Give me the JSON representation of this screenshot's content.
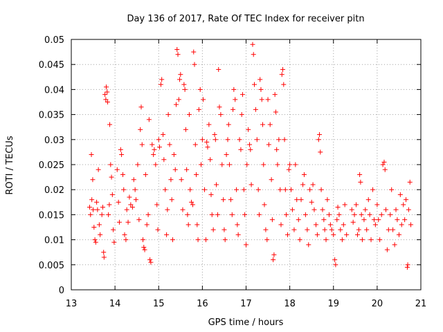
{
  "chart_data": {
    "type": "scatter",
    "title": "Day 136 of 2017, Rate Of TEC Index for receiver pitn",
    "xlabel": "GPS time / hours",
    "ylabel": "ROTI / TECUs",
    "xlim": [
      13,
      21
    ],
    "ylim": [
      0,
      0.05
    ],
    "xticks": [
      13,
      14,
      15,
      16,
      17,
      18,
      19,
      20,
      21
    ],
    "yticks": [
      0,
      0.005,
      0.01,
      0.015,
      0.02,
      0.025,
      0.03,
      0.035,
      0.04,
      0.045,
      0.05
    ],
    "ytick_labels": [
      "0",
      "0.005",
      "0.01",
      "0.015",
      "0.02",
      "0.025",
      "0.03",
      "0.035",
      "0.04",
      "0.045",
      "0.05"
    ],
    "grid": true,
    "marker": "+",
    "color": "#ff0000",
    "series": [
      {
        "name": "ROTI",
        "points": [
          [
            13.42,
            0.0165
          ],
          [
            13.44,
            0.015
          ],
          [
            13.46,
            0.027
          ],
          [
            13.47,
            0.018
          ],
          [
            13.49,
            0.022
          ],
          [
            13.5,
            0.016
          ],
          [
            13.52,
            0.0125
          ],
          [
            13.54,
            0.01
          ],
          [
            13.56,
            0.0095
          ],
          [
            13.58,
            0.0175
          ],
          [
            13.6,
            0.016
          ],
          [
            13.62,
            0.024
          ],
          [
            13.64,
            0.013
          ],
          [
            13.66,
            0.011
          ],
          [
            13.7,
            0.015
          ],
          [
            13.72,
            0.0165
          ],
          [
            13.74,
            0.0075
          ],
          [
            13.75,
            0.0065
          ],
          [
            13.77,
            0.039
          ],
          [
            13.79,
            0.038
          ],
          [
            13.8,
            0.0405
          ],
          [
            13.82,
            0.0395
          ],
          [
            13.83,
            0.0375
          ],
          [
            13.85,
            0.015
          ],
          [
            13.87,
            0.017
          ],
          [
            13.88,
            0.033
          ],
          [
            13.9,
            0.025
          ],
          [
            13.92,
            0.0225
          ],
          [
            13.94,
            0.019
          ],
          [
            13.96,
            0.012
          ],
          [
            13.98,
            0.0095
          ],
          [
            14.05,
            0.024
          ],
          [
            14.08,
            0.0175
          ],
          [
            14.1,
            0.0135
          ],
          [
            14.13,
            0.028
          ],
          [
            14.15,
            0.027
          ],
          [
            14.18,
            0.023
          ],
          [
            14.2,
            0.02
          ],
          [
            14.22,
            0.011
          ],
          [
            14.25,
            0.01
          ],
          [
            14.27,
            0.016
          ],
          [
            14.3,
            0.0135
          ],
          [
            14.33,
            0.0185
          ],
          [
            14.36,
            0.017
          ],
          [
            14.4,
            0.0165
          ],
          [
            14.43,
            0.022
          ],
          [
            14.46,
            0.02
          ],
          [
            14.48,
            0.018
          ],
          [
            14.52,
            0.025
          ],
          [
            14.55,
            0.014
          ],
          [
            14.58,
            0.032
          ],
          [
            14.6,
            0.0365
          ],
          [
            14.62,
            0.029
          ],
          [
            14.64,
            0.01
          ],
          [
            14.66,
            0.0085
          ],
          [
            14.68,
            0.008
          ],
          [
            14.7,
            0.023
          ],
          [
            14.73,
            0.013
          ],
          [
            14.76,
            0.015
          ],
          [
            14.78,
            0.034
          ],
          [
            14.8,
            0.006
          ],
          [
            14.82,
            0.0055
          ],
          [
            14.85,
            0.029
          ],
          [
            14.88,
            0.027
          ],
          [
            14.9,
            0.028
          ],
          [
            14.93,
            0.025
          ],
          [
            14.96,
            0.017
          ],
          [
            14.98,
            0.012
          ],
          [
            15.0,
            0.03
          ],
          [
            15.02,
            0.0285
          ],
          [
            15.05,
            0.041
          ],
          [
            15.07,
            0.042
          ],
          [
            15.1,
            0.031
          ],
          [
            15.12,
            0.026
          ],
          [
            15.15,
            0.02
          ],
          [
            15.18,
            0.011
          ],
          [
            15.2,
            0.016
          ],
          [
            15.22,
            0.035
          ],
          [
            15.25,
            0.029
          ],
          [
            15.28,
            0.022
          ],
          [
            15.3,
            0.018
          ],
          [
            15.32,
            0.01
          ],
          [
            15.35,
            0.027
          ],
          [
            15.38,
            0.024
          ],
          [
            15.4,
            0.037
          ],
          [
            15.42,
            0.048
          ],
          [
            15.44,
            0.047
          ],
          [
            15.46,
            0.038
          ],
          [
            15.48,
            0.042
          ],
          [
            15.5,
            0.043
          ],
          [
            15.52,
            0.022
          ],
          [
            15.55,
            0.016
          ],
          [
            15.58,
            0.041
          ],
          [
            15.6,
            0.04
          ],
          [
            15.62,
            0.032
          ],
          [
            15.64,
            0.024
          ],
          [
            15.66,
            0.015
          ],
          [
            15.68,
            0.013
          ],
          [
            15.7,
            0.035
          ],
          [
            15.72,
            0.02
          ],
          [
            15.75,
            0.0175
          ],
          [
            15.78,
            0.017
          ],
          [
            15.8,
            0.0475
          ],
          [
            15.82,
            0.045
          ],
          [
            15.84,
            0.029
          ],
          [
            15.86,
            0.023
          ],
          [
            15.88,
            0.013
          ],
          [
            15.9,
            0.01
          ],
          [
            15.92,
            0.036
          ],
          [
            15.95,
            0.04
          ],
          [
            15.97,
            0.025
          ],
          [
            16.0,
            0.03
          ],
          [
            16.02,
            0.038
          ],
          [
            16.05,
            0.02
          ],
          [
            16.08,
            0.01
          ],
          [
            16.1,
            0.0295
          ],
          [
            16.12,
            0.0285
          ],
          [
            16.15,
            0.033
          ],
          [
            16.18,
            0.026
          ],
          [
            16.2,
            0.019
          ],
          [
            16.22,
            0.015
          ],
          [
            16.25,
            0.012
          ],
          [
            16.28,
            0.031
          ],
          [
            16.3,
            0.03
          ],
          [
            16.32,
            0.021
          ],
          [
            16.35,
            0.015
          ],
          [
            16.37,
            0.044
          ],
          [
            16.39,
            0.0365
          ],
          [
            16.42,
            0.035
          ],
          [
            16.45,
            0.025
          ],
          [
            16.48,
            0.018
          ],
          [
            16.5,
            0.012
          ],
          [
            16.52,
            0.01
          ],
          [
            16.55,
            0.027
          ],
          [
            16.58,
            0.03
          ],
          [
            16.6,
            0.033
          ],
          [
            16.62,
            0.025
          ],
          [
            16.65,
            0.018
          ],
          [
            16.68,
            0.015
          ],
          [
            16.7,
            0.036
          ],
          [
            16.72,
            0.04
          ],
          [
            16.75,
            0.038
          ],
          [
            16.78,
            0.02
          ],
          [
            16.8,
            0.013
          ],
          [
            16.82,
            0.011
          ],
          [
            16.85,
            0.03
          ],
          [
            16.88,
            0.028
          ],
          [
            16.9,
            0.035
          ],
          [
            16.92,
            0.039
          ],
          [
            16.95,
            0.02
          ],
          [
            16.97,
            0.015
          ],
          [
            17.0,
            0.009
          ],
          [
            17.02,
            0.025
          ],
          [
            17.05,
            0.032
          ],
          [
            17.08,
            0.029
          ],
          [
            17.1,
            0.028
          ],
          [
            17.12,
            0.021
          ],
          [
            17.15,
            0.049
          ],
          [
            17.17,
            0.047
          ],
          [
            17.19,
            0.041
          ],
          [
            17.22,
            0.036
          ],
          [
            17.25,
            0.03
          ],
          [
            17.28,
            0.02
          ],
          [
            17.3,
            0.015
          ],
          [
            17.32,
            0.042
          ],
          [
            17.34,
            0.04
          ],
          [
            17.36,
            0.038
          ],
          [
            17.38,
            0.033
          ],
          [
            17.4,
            0.025
          ],
          [
            17.42,
            0.017
          ],
          [
            17.45,
            0.012
          ],
          [
            17.48,
            0.01
          ],
          [
            17.5,
            0.038
          ],
          [
            17.52,
            0.029
          ],
          [
            17.55,
            0.033
          ],
          [
            17.58,
            0.022
          ],
          [
            17.6,
            0.014
          ],
          [
            17.62,
            0.006
          ],
          [
            17.64,
            0.007
          ],
          [
            17.66,
            0.039
          ],
          [
            17.68,
            0.0355
          ],
          [
            17.7,
            0.028
          ],
          [
            17.72,
            0.025
          ],
          [
            17.75,
            0.03
          ],
          [
            17.78,
            0.02
          ],
          [
            17.8,
            0.013
          ],
          [
            17.82,
            0.043
          ],
          [
            17.84,
            0.044
          ],
          [
            17.86,
            0.041
          ],
          [
            17.88,
            0.03
          ],
          [
            17.9,
            0.02
          ],
          [
            17.92,
            0.015
          ],
          [
            17.95,
            0.011
          ],
          [
            17.98,
            0.024
          ],
          [
            18.0,
            0.025
          ],
          [
            18.03,
            0.02
          ],
          [
            18.06,
            0.016
          ],
          [
            18.1,
            0.012
          ],
          [
            18.13,
            0.025
          ],
          [
            18.16,
            0.018
          ],
          [
            18.2,
            0.014
          ],
          [
            18.23,
            0.01
          ],
          [
            18.26,
            0.018
          ],
          [
            18.3,
            0.021
          ],
          [
            18.33,
            0.023
          ],
          [
            18.36,
            0.015
          ],
          [
            18.4,
            0.012
          ],
          [
            18.43,
            0.009
          ],
          [
            18.46,
            0.02
          ],
          [
            18.5,
            0.0175
          ],
          [
            18.53,
            0.021
          ],
          [
            18.56,
            0.016
          ],
          [
            18.6,
            0.013
          ],
          [
            18.63,
            0.011
          ],
          [
            18.66,
            0.03
          ],
          [
            18.68,
            0.031
          ],
          [
            18.7,
            0.0275
          ],
          [
            18.72,
            0.02
          ],
          [
            18.75,
            0.016
          ],
          [
            18.78,
            0.014
          ],
          [
            18.8,
            0.012
          ],
          [
            18.83,
            0.01
          ],
          [
            18.86,
            0.018
          ],
          [
            18.9,
            0.015
          ],
          [
            18.93,
            0.013
          ],
          [
            18.96,
            0.012
          ],
          [
            19.0,
            0.011
          ],
          [
            19.03,
            0.006
          ],
          [
            19.05,
            0.005
          ],
          [
            19.08,
            0.014
          ],
          [
            19.1,
            0.0165
          ],
          [
            19.13,
            0.015
          ],
          [
            19.16,
            0.012
          ],
          [
            19.2,
            0.01
          ],
          [
            19.23,
            0.013
          ],
          [
            19.26,
            0.017
          ],
          [
            19.3,
            0.011
          ],
          [
            19.42,
            0.016
          ],
          [
            19.45,
            0.0135
          ],
          [
            19.48,
            0.015
          ],
          [
            19.52,
            0.017
          ],
          [
            19.55,
            0.011
          ],
          [
            19.58,
            0.012
          ],
          [
            19.6,
            0.023
          ],
          [
            19.62,
            0.0215
          ],
          [
            19.64,
            0.015
          ],
          [
            19.66,
            0.01
          ],
          [
            19.7,
            0.014
          ],
          [
            19.73,
            0.016
          ],
          [
            19.76,
            0.012
          ],
          [
            19.8,
            0.018
          ],
          [
            19.83,
            0.015
          ],
          [
            19.86,
            0.01
          ],
          [
            19.9,
            0.02
          ],
          [
            19.93,
            0.014
          ],
          [
            19.96,
            0.013
          ],
          [
            20.0,
            0.017
          ],
          [
            20.03,
            0.014
          ],
          [
            20.06,
            0.01
          ],
          [
            20.1,
            0.015
          ],
          [
            20.13,
            0.025
          ],
          [
            20.16,
            0.0255
          ],
          [
            20.18,
            0.024
          ],
          [
            20.2,
            0.016
          ],
          [
            20.23,
            0.008
          ],
          [
            20.26,
            0.012
          ],
          [
            20.3,
            0.015
          ],
          [
            20.33,
            0.02
          ],
          [
            20.36,
            0.012
          ],
          [
            20.4,
            0.009
          ],
          [
            20.43,
            0.016
          ],
          [
            20.46,
            0.014
          ],
          [
            20.5,
            0.011
          ],
          [
            20.53,
            0.019
          ],
          [
            20.56,
            0.013
          ],
          [
            20.6,
            0.017
          ],
          [
            20.63,
            0.014
          ],
          [
            20.66,
            0.018
          ],
          [
            20.69,
            0.0045
          ],
          [
            20.7,
            0.005
          ],
          [
            20.72,
            0.016
          ],
          [
            20.75,
            0.0215
          ],
          [
            20.77,
            0.013
          ]
        ]
      }
    ]
  }
}
